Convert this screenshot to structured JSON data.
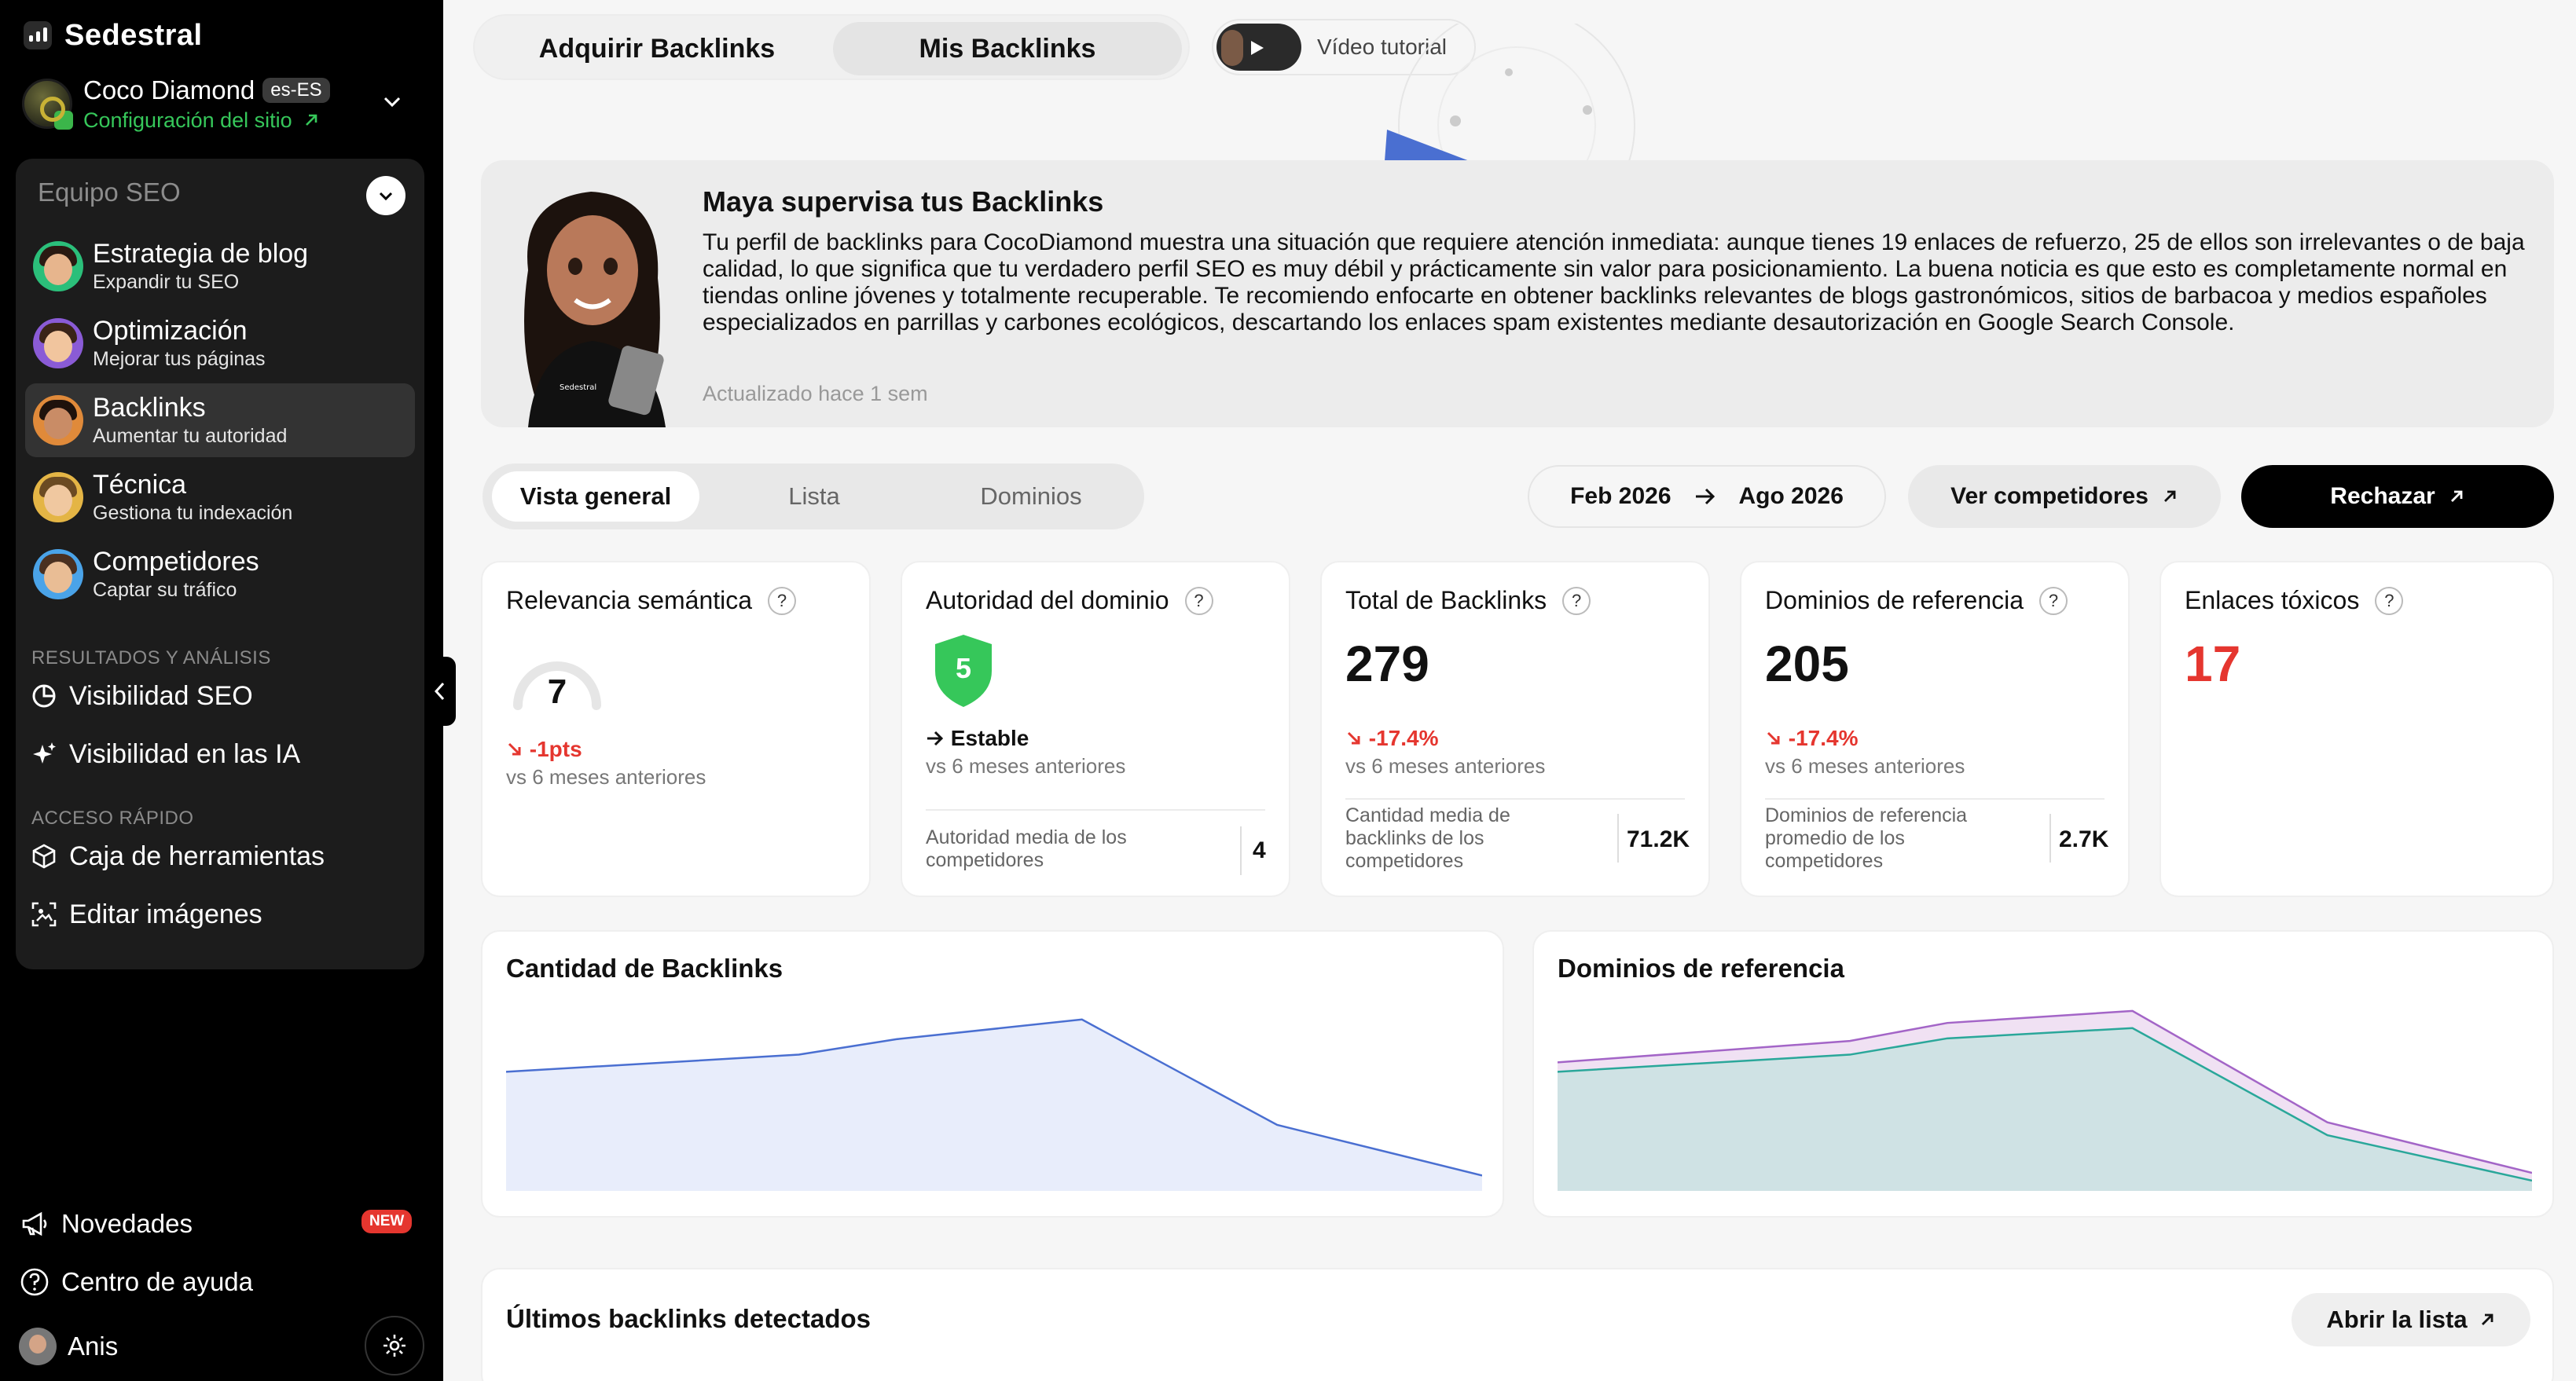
{
  "brand": {
    "name": "Sedestral"
  },
  "site": {
    "name": "Coco Diamond",
    "lang": "es-ES",
    "config_label": "Configuración del sitio"
  },
  "team": {
    "heading": "Equipo SEO",
    "agents": [
      {
        "title": "Estrategia de blog",
        "sub": "Expandir tu SEO"
      },
      {
        "title": "Optimización",
        "sub": "Mejorar tus páginas"
      },
      {
        "title": "Backlinks",
        "sub": "Aumentar tu autoridad"
      },
      {
        "title": "Técnica",
        "sub": "Gestiona tu indexación"
      },
      {
        "title": "Competidores",
        "sub": "Captar su tráfico"
      }
    ],
    "results_label": "RESULTADOS Y ANÁLISIS",
    "results": [
      "Visibilidad SEO",
      "Visibilidad en las IA"
    ],
    "quick_label": "ACCESO RÁPIDO",
    "quick": [
      "Caja de herramientas",
      "Editar imágenes"
    ]
  },
  "footer": {
    "news": "Novedades",
    "new_badge": "NEW",
    "help": "Centro de ayuda",
    "user": "Anis"
  },
  "topbar": {
    "tabs": [
      "Adquirir Backlinks",
      "Mis Backlinks"
    ],
    "tutorial": "Vídeo tutorial"
  },
  "maya": {
    "title": "Maya supervisa tus Backlinks",
    "body": "Tu perfil de backlinks para CocoDiamond muestra una situación que requiere atención inmediata: aunque tienes 19 enlaces de refuerzo, 25 de ellos son irrelevantes o de baja calidad, lo que significa que tu verdadero perfil SEO es muy débil y prácticamente sin valor para posicionamiento. La buena noticia es que esto es completamente normal en tiendas online jóvenes y totalmente recuperable. Te recomiendo enfocarte en obtener backlinks relevantes de blogs gastronómicos, sitios de barbacoa y medios españoles especializados en parrillas y carbones ecológicos, descartando los enlaces spam existentes mediante desautorización en Google Search Console.",
    "updated": "Actualizado hace 1 sem"
  },
  "view_tabs": [
    "Vista general",
    "Lista",
    "Dominios"
  ],
  "date_range": {
    "from": "Feb 2026",
    "to": "Ago 2026"
  },
  "actions": {
    "competitors": "Ver competidores",
    "reject": "Rechazar"
  },
  "metrics": {
    "relevance": {
      "title": "Relevancia semántica",
      "value": "7",
      "delta": "-1pts",
      "vs": "vs 6 meses anteriores"
    },
    "authority": {
      "title": "Autoridad del dominio",
      "value": "5",
      "delta": "Estable",
      "vs": "vs 6 meses anteriores",
      "comp_label": "Autoridad media de los competidores",
      "comp_value": "4"
    },
    "total": {
      "title": "Total de Backlinks",
      "value": "279",
      "delta": "-17.4%",
      "vs": "vs 6 meses anteriores",
      "comp_label": "Cantidad media de backlinks de los competidores",
      "comp_value": "71.2K"
    },
    "domains": {
      "title": "Dominios de referencia",
      "value": "205",
      "delta": "-17.4%",
      "vs": "vs 6 meses anteriores",
      "comp_label": "Dominios de referencia promedio de los competidores",
      "comp_value": "2.7K"
    },
    "toxic": {
      "title": "Enlaces tóxicos",
      "value": "17"
    }
  },
  "colors": {
    "accent_green": "#36c75a",
    "negative_red": "#e5362f",
    "chart_blue": "#4a6fd1",
    "chart_purple": "#a365c7",
    "chart_teal": "#2aa79a"
  },
  "chart_data": [
    {
      "type": "area",
      "title": "Cantidad de Backlinks",
      "x": [
        0,
        1,
        2,
        3,
        4,
        5
      ],
      "series": [
        {
          "values": [
            139,
            159,
            177,
            200,
            77,
            18
          ]
        }
      ],
      "ylim": [
        0,
        220
      ]
    },
    {
      "type": "area",
      "title": "Dominios de referencia",
      "x": [
        0,
        1,
        2,
        3,
        4,
        5
      ],
      "series": [
        {
          "values": [
            150,
            175,
            196,
            210,
            80,
            21
          ]
        },
        {
          "values": [
            139,
            159,
            178,
            190,
            65,
            12
          ]
        }
      ],
      "ylim": [
        0,
        220
      ]
    }
  ],
  "latest": {
    "title": "Últimos backlinks detectados",
    "open_label": "Abrir la lista"
  }
}
